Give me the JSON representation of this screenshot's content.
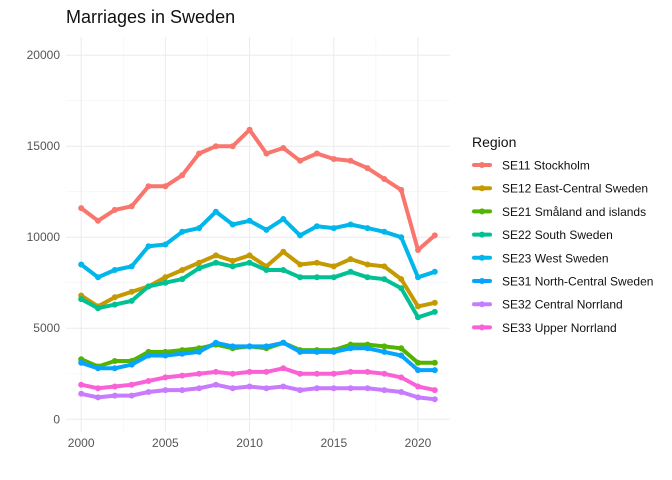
{
  "chart_data": {
    "type": "line",
    "title": "Marriages in Sweden",
    "xlabel": "",
    "ylabel": "",
    "x": [
      2000,
      2001,
      2002,
      2003,
      2004,
      2005,
      2006,
      2007,
      2008,
      2009,
      2010,
      2011,
      2012,
      2013,
      2014,
      2015,
      2016,
      2017,
      2018,
      2019,
      2020,
      2021
    ],
    "xlim": [
      1999.1,
      2021.9
    ],
    "ylim": [
      -700,
      21000
    ],
    "x_ticks": [
      2000,
      2005,
      2010,
      2015,
      2020
    ],
    "y_ticks": [
      0,
      5000,
      10000,
      15000,
      20000
    ],
    "x_tick_labels": [
      "2000",
      "2005",
      "2010",
      "2015",
      "2020"
    ],
    "y_tick_labels": [
      "0",
      "5000",
      "10000",
      "15000",
      "20000"
    ],
    "grid": true,
    "legend": {
      "title": "Region",
      "position": "right"
    },
    "series": [
      {
        "name": "SE11 Stockholm",
        "color": "#F8766D",
        "values": [
          11600,
          10900,
          11500,
          11700,
          12800,
          12800,
          13400,
          14600,
          15000,
          15000,
          15900,
          14600,
          14900,
          14200,
          14600,
          14300,
          14200,
          13800,
          13200,
          12600,
          9300,
          10100
        ]
      },
      {
        "name": "SE12 East-Central Sweden",
        "color": "#C49A00",
        "values": [
          6800,
          6200,
          6700,
          7000,
          7300,
          7800,
          8200,
          8600,
          9000,
          8700,
          9000,
          8400,
          9200,
          8500,
          8600,
          8400,
          8800,
          8500,
          8400,
          7700,
          6200,
          6400
        ]
      },
      {
        "name": "SE21 Småland and islands",
        "color": "#53B400",
        "values": [
          3300,
          2900,
          3200,
          3200,
          3700,
          3700,
          3800,
          3900,
          4100,
          3900,
          4000,
          3900,
          4200,
          3800,
          3800,
          3800,
          4100,
          4100,
          4000,
          3900,
          3100,
          3100
        ]
      },
      {
        "name": "SE22 South Sweden",
        "color": "#00C094",
        "values": [
          6600,
          6100,
          6300,
          6500,
          7300,
          7500,
          7700,
          8300,
          8600,
          8400,
          8600,
          8200,
          8200,
          7800,
          7800,
          7800,
          8100,
          7800,
          7700,
          7200,
          5600,
          5900
        ]
      },
      {
        "name": "SE23 West Sweden",
        "color": "#00B6EB",
        "values": [
          8500,
          7800,
          8200,
          8400,
          9500,
          9600,
          10300,
          10500,
          11400,
          10700,
          10900,
          10400,
          11000,
          10100,
          10600,
          10500,
          10700,
          10500,
          10300,
          10000,
          7800,
          8100
        ]
      },
      {
        "name": "SE31 North-Central Sweden",
        "color": "#06A4FF",
        "values": [
          3100,
          2800,
          2800,
          3000,
          3500,
          3500,
          3600,
          3700,
          4200,
          4000,
          4000,
          4000,
          4200,
          3700,
          3700,
          3700,
          3900,
          3900,
          3700,
          3500,
          2700,
          2700
        ]
      },
      {
        "name": "SE32 Central Norrland",
        "color": "#C77CFF",
        "values": [
          1400,
          1200,
          1300,
          1300,
          1500,
          1600,
          1600,
          1700,
          1900,
          1700,
          1800,
          1700,
          1800,
          1600,
          1700,
          1700,
          1700,
          1700,
          1600,
          1500,
          1200,
          1100
        ]
      },
      {
        "name": "SE33 Upper Norrland",
        "color": "#FB61D7",
        "values": [
          1900,
          1700,
          1800,
          1900,
          2100,
          2300,
          2400,
          2500,
          2600,
          2500,
          2600,
          2600,
          2800,
          2500,
          2500,
          2500,
          2600,
          2600,
          2500,
          2300,
          1800,
          1600
        ]
      }
    ]
  }
}
